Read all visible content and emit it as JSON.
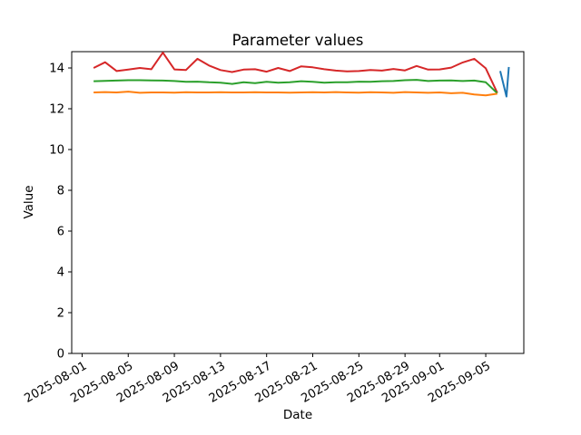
{
  "chart_data": {
    "type": "line",
    "title": "Parameter values",
    "xlabel": "Date",
    "ylabel": "Value",
    "grid": false,
    "legend": "none",
    "x_base_date": "2025-08-01",
    "xlim_days": [
      -0.9,
      38.3
    ],
    "ylim": [
      0,
      14.8
    ],
    "y_ticks": [
      0,
      2,
      4,
      6,
      8,
      10,
      12,
      14
    ],
    "x_ticks": [
      {
        "day": 0,
        "label": "2025-08-01"
      },
      {
        "day": 4,
        "label": "2025-08-05"
      },
      {
        "day": 8,
        "label": "2025-08-09"
      },
      {
        "day": 12,
        "label": "2025-08-13"
      },
      {
        "day": 16,
        "label": "2025-08-17"
      },
      {
        "day": 20,
        "label": "2025-08-21"
      },
      {
        "day": 24,
        "label": "2025-08-25"
      },
      {
        "day": 28,
        "label": "2025-08-29"
      },
      {
        "day": 31,
        "label": "2025-09-01"
      },
      {
        "day": 35,
        "label": "2025-09-05"
      }
    ],
    "series": [
      {
        "name": "red",
        "color": "#d62728",
        "x_days": [
          1,
          2,
          3,
          4,
          5,
          6,
          7,
          8,
          9,
          10,
          11,
          12,
          13,
          14,
          15,
          16,
          17,
          18,
          19,
          20,
          21,
          22,
          23,
          24,
          25,
          26,
          27,
          28,
          29,
          30,
          31,
          32,
          33,
          34,
          35,
          36
        ],
        "values": [
          14.0,
          14.28,
          13.85,
          13.92,
          14.0,
          13.94,
          14.75,
          13.93,
          13.9,
          14.45,
          14.12,
          13.9,
          13.8,
          13.92,
          13.94,
          13.82,
          14.0,
          13.85,
          14.08,
          14.03,
          13.94,
          13.87,
          13.83,
          13.85,
          13.9,
          13.87,
          13.95,
          13.88,
          14.1,
          13.92,
          13.93,
          14.02,
          14.27,
          14.45,
          13.98,
          12.78
        ]
      },
      {
        "name": "green",
        "color": "#2ca02c",
        "x_days": [
          1,
          2,
          3,
          4,
          5,
          6,
          7,
          8,
          9,
          10,
          11,
          12,
          13,
          14,
          15,
          16,
          17,
          18,
          19,
          20,
          21,
          22,
          23,
          24,
          25,
          26,
          27,
          28,
          29,
          30,
          31,
          32,
          33,
          34,
          35,
          36
        ],
        "values": [
          13.35,
          13.37,
          13.38,
          13.4,
          13.4,
          13.39,
          13.38,
          13.36,
          13.32,
          13.33,
          13.3,
          13.28,
          13.22,
          13.3,
          13.26,
          13.32,
          13.28,
          13.3,
          13.35,
          13.32,
          13.28,
          13.3,
          13.3,
          13.33,
          13.32,
          13.35,
          13.36,
          13.4,
          13.42,
          13.36,
          13.38,
          13.39,
          13.36,
          13.38,
          13.3,
          12.76
        ]
      },
      {
        "name": "orange",
        "color": "#ff7f0e",
        "x_days": [
          1,
          2,
          3,
          4,
          5,
          6,
          7,
          8,
          9,
          10,
          11,
          12,
          13,
          14,
          15,
          16,
          17,
          18,
          19,
          20,
          21,
          22,
          23,
          24,
          25,
          26,
          27,
          28,
          29,
          30,
          31,
          32,
          33,
          34,
          35,
          36
        ],
        "values": [
          12.8,
          12.82,
          12.8,
          12.84,
          12.78,
          12.8,
          12.8,
          12.79,
          12.81,
          12.8,
          12.8,
          12.81,
          12.8,
          12.8,
          12.81,
          12.8,
          12.8,
          12.79,
          12.8,
          12.81,
          12.8,
          12.82,
          12.8,
          12.79,
          12.81,
          12.8,
          12.78,
          12.82,
          12.8,
          12.78,
          12.8,
          12.76,
          12.78,
          12.7,
          12.66,
          12.74
        ]
      },
      {
        "name": "blue",
        "color": "#1f77b4",
        "x_days": [
          36.25,
          36.8,
          37.0
        ],
        "values": [
          13.85,
          12.6,
          14.05
        ]
      }
    ]
  }
}
